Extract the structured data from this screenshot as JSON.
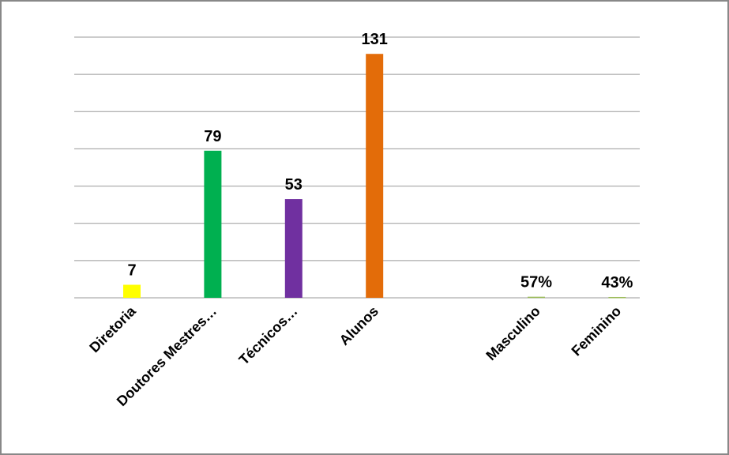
{
  "chart_data": {
    "type": "bar",
    "categories": [
      "Diretoria",
      "Doutores Mestres…",
      "Técnicos…",
      "Alunos",
      null,
      "Masculino",
      "Feminino"
    ],
    "values": [
      7,
      79,
      53,
      131,
      null,
      0.57,
      0.43
    ],
    "value_labels": [
      "7",
      "79",
      "53",
      "131",
      null,
      "57%",
      "43%"
    ],
    "colors": [
      "#ffff00",
      "#00b050",
      "#7030a0",
      "#e36c09",
      null,
      "#9bbb59",
      "#9bbb59"
    ],
    "ylim": [
      0,
      140
    ],
    "yticks": [
      0,
      20,
      40,
      60,
      80,
      100,
      120,
      140
    ],
    "grid": true
  }
}
